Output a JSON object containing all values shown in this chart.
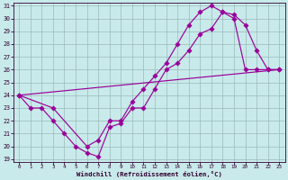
{
  "xlabel": "Windchill (Refroidissement éolien,°C)",
  "bg_color": "#c8eaea",
  "line_color": "#990099",
  "grid_color": "#9bbaba",
  "xmin": 0,
  "xmax": 23,
  "ymin": 19,
  "ymax": 31,
  "series1_x": [
    0,
    1,
    2,
    3,
    4,
    5,
    6,
    7,
    8,
    9,
    10,
    11,
    12,
    13,
    14,
    15,
    16,
    17,
    18,
    19,
    20,
    21,
    22,
    23
  ],
  "series1_y": [
    24,
    23,
    23,
    22,
    21,
    20,
    19.5,
    19.2,
    21.5,
    21.8,
    23,
    23,
    24.5,
    26,
    26.5,
    27.5,
    28.8,
    29.2,
    30.5,
    30.3,
    29.5,
    27.5,
    26,
    26
  ],
  "series2_x": [
    0,
    3,
    6,
    7,
    8,
    9,
    10,
    11,
    12,
    13,
    14,
    15,
    16,
    17,
    18,
    19,
    20,
    21,
    22,
    23
  ],
  "series2_y": [
    24,
    23,
    20,
    20.5,
    22,
    22,
    23.5,
    24.5,
    25.5,
    26.5,
    28,
    29.5,
    30.5,
    31,
    30.5,
    30,
    26,
    26,
    26,
    26
  ],
  "series3_x": [
    0,
    23
  ],
  "series3_y": [
    24,
    26
  ],
  "yticks": [
    19,
    20,
    21,
    22,
    23,
    24,
    25,
    26,
    27,
    28,
    29,
    30,
    31
  ],
  "xticks": [
    0,
    1,
    2,
    3,
    4,
    5,
    6,
    7,
    8,
    9,
    10,
    11,
    12,
    13,
    14,
    15,
    16,
    17,
    18,
    19,
    20,
    21,
    22,
    23
  ]
}
